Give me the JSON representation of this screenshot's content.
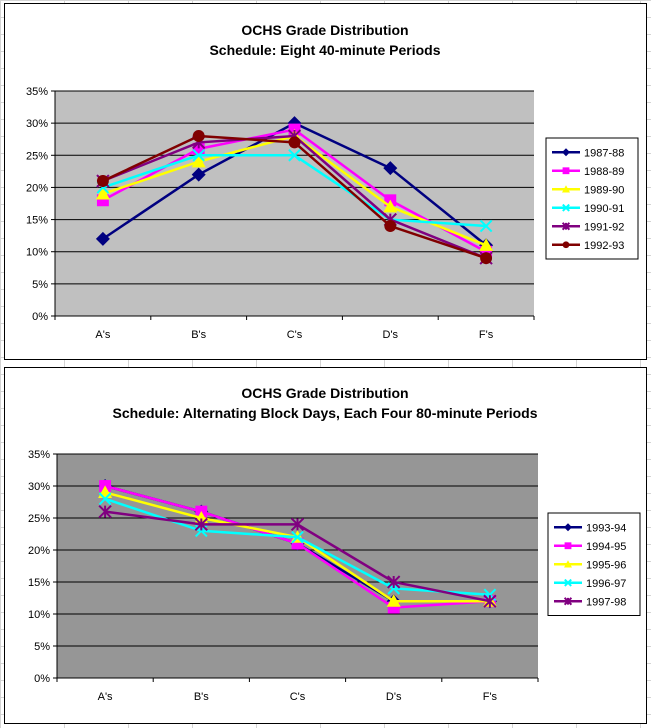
{
  "chart_data": [
    {
      "type": "line",
      "title": "OCHS Grade Distribution",
      "subtitle": "Schedule: Eight 40-minute Periods",
      "categories": [
        "A's",
        "B's",
        "C's",
        "D's",
        "F's"
      ],
      "y_ticks": [
        "0%",
        "5%",
        "10%",
        "15%",
        "20%",
        "25%",
        "30%",
        "35%"
      ],
      "ylim": [
        0,
        35
      ],
      "grid": true,
      "plot_color": "#c0c0c0",
      "legend_position": "right",
      "series": [
        {
          "name": "1987-88",
          "color": "#000080",
          "marker": "diamond",
          "values": [
            12,
            22,
            30,
            23,
            11
          ]
        },
        {
          "name": "1988-89",
          "color": "#ff00ff",
          "marker": "square",
          "values": [
            18,
            26,
            29,
            18,
            10
          ]
        },
        {
          "name": "1989-90",
          "color": "#ffff00",
          "marker": "triangle",
          "values": [
            19,
            24,
            28,
            17,
            11
          ]
        },
        {
          "name": "1990-91",
          "color": "#00ffff",
          "marker": "x",
          "values": [
            20,
            25,
            25,
            15,
            14
          ]
        },
        {
          "name": "1991-92",
          "color": "#800080",
          "marker": "star",
          "values": [
            21,
            27,
            28,
            15,
            9
          ]
        },
        {
          "name": "1992-93",
          "color": "#800000",
          "marker": "circle",
          "values": [
            21,
            28,
            27,
            14,
            9
          ]
        }
      ]
    },
    {
      "type": "line",
      "title": "OCHS Grade Distribution",
      "subtitle": "Schedule: Alternating Block Days, Each Four 80-minute Periods",
      "categories": [
        "A's",
        "B's",
        "C's",
        "D's",
        "F's"
      ],
      "y_ticks": [
        "0%",
        "5%",
        "10%",
        "15%",
        "20%",
        "25%",
        "30%",
        "35%"
      ],
      "ylim": [
        0,
        35
      ],
      "grid": true,
      "plot_color": "#969696",
      "legend_position": "right",
      "series": [
        {
          "name": "1993-94",
          "color": "#000080",
          "marker": "diamond",
          "values": [
            30,
            26,
            21,
            12,
            12
          ]
        },
        {
          "name": "1994-95",
          "color": "#ff00ff",
          "marker": "square",
          "values": [
            30,
            26,
            21,
            11,
            12
          ]
        },
        {
          "name": "1995-96",
          "color": "#ffff00",
          "marker": "triangle",
          "values": [
            29,
            25,
            22,
            12,
            12
          ]
        },
        {
          "name": "1996-97",
          "color": "#00ffff",
          "marker": "x",
          "values": [
            28,
            23,
            22,
            14,
            13
          ]
        },
        {
          "name": "1997-98",
          "color": "#800080",
          "marker": "star",
          "values": [
            26,
            24,
            24,
            15,
            12
          ]
        }
      ]
    }
  ]
}
